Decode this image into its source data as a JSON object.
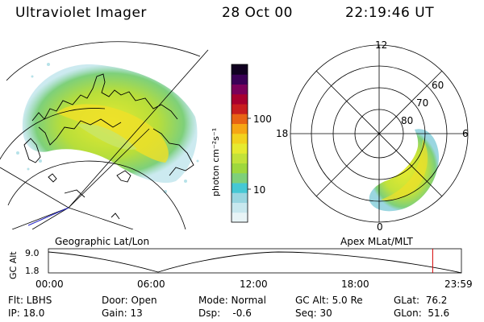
{
  "header": {
    "title": "Ultraviolet Imager",
    "date": "28 Oct 00",
    "time": "22:19:46 UT"
  },
  "colorbar": {
    "unit_label": "photon cm⁻²s⁻¹",
    "tick_100": "100",
    "tick_10": "10",
    "colors": [
      "#e8f4f6",
      "#c8e8ee",
      "#9ad6e0",
      "#46c8d4",
      "#7ed07a",
      "#9ed83e",
      "#c2e23a",
      "#e6ea30",
      "#f2d21e",
      "#f6a614",
      "#e86414",
      "#c81e1e",
      "#a8002e",
      "#7a005a",
      "#3a0056",
      "#100020"
    ]
  },
  "polar_plot": {
    "ring_labels": [
      "60",
      "70",
      "80"
    ],
    "mlt_labels": {
      "top": "12",
      "left": "18",
      "right": "6",
      "bottom": "0"
    }
  },
  "left_map_label": "Geographic Lat/Lon",
  "right_map_label": "Apex MLat/MLT",
  "orbit_plot": {
    "y_axis_title": "GC Alt",
    "y_ticks": [
      "9.0",
      "1.8"
    ],
    "x_ticks": [
      "00:00",
      "06:00",
      "12:00",
      "18:00",
      "23:59"
    ],
    "marker_color": "#d40000",
    "marker_hour": 22.33
  },
  "info": {
    "flt": "Flt: LBHS",
    "ip": "IP: 18.0",
    "door": "Door: Open",
    "gain": "Gain: 13",
    "mode": "Mode: Normal",
    "dsp": "Dsp:    -0.6",
    "gc_alt": "GC Alt: 5.0 Re",
    "seq": "Seq: 30",
    "glat": "GLat:  76.2",
    "glon": "GLon:  51.6"
  }
}
